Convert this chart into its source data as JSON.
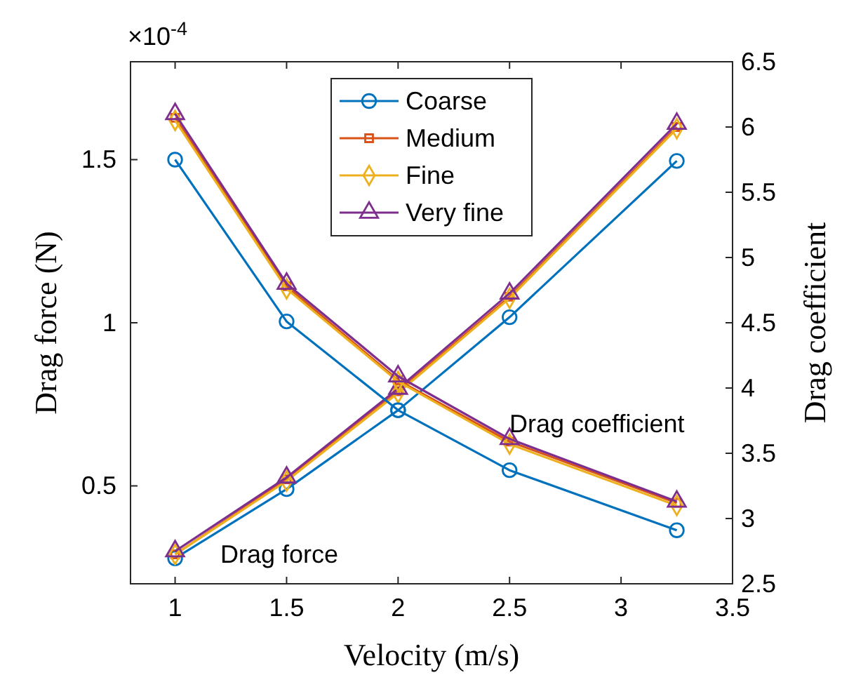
{
  "chart_data": {
    "type": "line",
    "xlabel": "Velocity (m/s)",
    "ylabel": "Drag force (N)",
    "y2label": "Drag coefficient",
    "x": [
      1,
      1.5,
      2,
      2.5,
      3.25
    ],
    "xlim": [
      0.8,
      3.5
    ],
    "xticks": [
      1,
      1.5,
      2,
      2.5,
      3,
      3.5
    ],
    "ylim": [
      0.2,
      1.8
    ],
    "yticks": [
      0.5,
      1,
      1.5
    ],
    "y2lim": [
      2.5,
      6.5
    ],
    "y2ticks": [
      2.5,
      3,
      3.5,
      4,
      4.5,
      5,
      5.5,
      6,
      6.5
    ],
    "grid": false,
    "legend": "top",
    "line_style": "solid",
    "annotations": [
      "×10$^{-4}$",
      "Drag force",
      "Drag coefficient"
    ],
    "series": [
      {
        "name": "Coarse",
        "color": "#0072bd",
        "marker": "circle",
        "values": [
          0.278,
          0.49,
          0.732,
          1.017,
          1.496
        ]
      },
      {
        "name": "Medium",
        "color": "#d95319",
        "marker": "square",
        "values": [
          0.29,
          0.52,
          0.79,
          1.08,
          1.6
        ]
      },
      {
        "name": "Fine",
        "color": "#edb120",
        "marker": "diamond",
        "values": [
          0.29,
          0.515,
          0.785,
          1.075,
          1.595
        ]
      },
      {
        "name": "Very fine",
        "color": "#7e2f8e",
        "marker": "triangle",
        "values": [
          0.3,
          0.526,
          0.798,
          1.09,
          1.61
        ]
      },
      {
        "color": "#0072bd",
        "marker": "circle",
        "axis": "y2",
        "values": [
          5.75,
          4.51,
          3.83,
          3.37,
          2.91
        ]
      },
      {
        "color": "#d95319",
        "marker": "square",
        "axis": "y2",
        "values": [
          6.07,
          4.78,
          4.06,
          3.59,
          3.12
        ]
      },
      {
        "color": "#edb120",
        "marker": "diamond",
        "axis": "y2",
        "values": [
          6.05,
          4.76,
          4.05,
          3.57,
          3.1
        ]
      },
      {
        "color": "#7e2f8e",
        "marker": "triangle",
        "axis": "y2",
        "values": [
          6.1,
          4.8,
          4.09,
          3.61,
          3.13
        ]
      }
    ]
  }
}
